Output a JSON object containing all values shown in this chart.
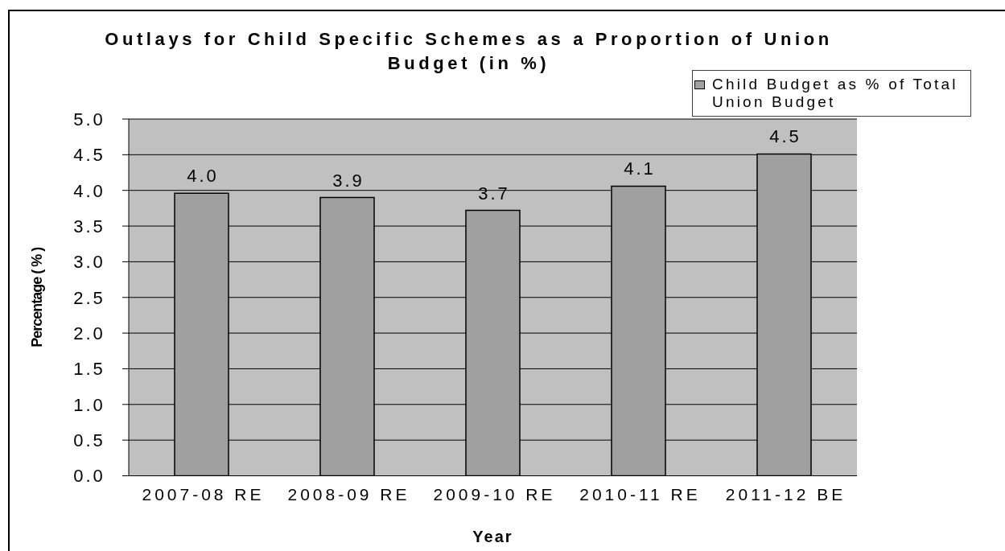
{
  "chart_data": {
    "type": "bar",
    "title": "Outlays for Child Specific Schemes as a Proportion of Union Budget (in %)",
    "xlabel": "Year",
    "ylabel": "Percentage ( % )",
    "categories": [
      "2007-08 RE",
      "2008-09 RE",
      "2009-10 RE",
      "2010-11 RE",
      "2011-12 BE"
    ],
    "series": [
      {
        "name": "Child Budget as % of Total Union Budget",
        "color": "#a0a0a0",
        "values": [
          3.96,
          3.9,
          3.72,
          4.06,
          4.51
        ],
        "value_labels": [
          "4.0",
          "3.9",
          "3.7",
          "4.1",
          "4.5"
        ]
      }
    ],
    "ylim": [
      0,
      5
    ],
    "yticks": [
      {
        "value": 0,
        "label": "0.0"
      },
      0.5,
      {
        "value": 1,
        "label": "1.0"
      },
      1.5,
      {
        "value": 2,
        "label": "2.0"
      },
      2.5,
      {
        "value": 3,
        "label": "3.0"
      },
      3.5,
      {
        "value": 4,
        "label": "4.0"
      },
      4.5,
      {
        "value": 5,
        "label": "5.0"
      }
    ],
    "grid": "y",
    "legend": "top right"
  }
}
